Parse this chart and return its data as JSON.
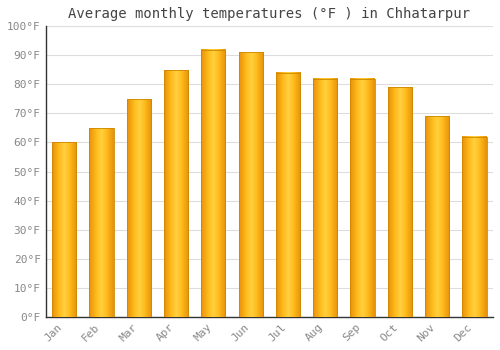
{
  "title": "Average monthly temperatures (°F ) in Chhatarpur",
  "months": [
    "Jan",
    "Feb",
    "Mar",
    "Apr",
    "May",
    "Jun",
    "Jul",
    "Aug",
    "Sep",
    "Oct",
    "Nov",
    "Dec"
  ],
  "values": [
    60,
    65,
    75,
    85,
    92,
    91,
    84,
    82,
    82,
    79,
    69,
    62
  ],
  "bar_color_center": "#FFD040",
  "bar_color_edge": "#F5A400",
  "ylim": [
    0,
    100
  ],
  "yticks": [
    0,
    10,
    20,
    30,
    40,
    50,
    60,
    70,
    80,
    90,
    100
  ],
  "ytick_labels": [
    "0°F",
    "10°F",
    "20°F",
    "30°F",
    "40°F",
    "50°F",
    "60°F",
    "70°F",
    "80°F",
    "90°F",
    "100°F"
  ],
  "background_color": "#FFFFFF",
  "grid_color": "#DDDDDD",
  "title_fontsize": 10,
  "tick_fontsize": 8,
  "bar_width": 0.65,
  "spine_color": "#333333"
}
